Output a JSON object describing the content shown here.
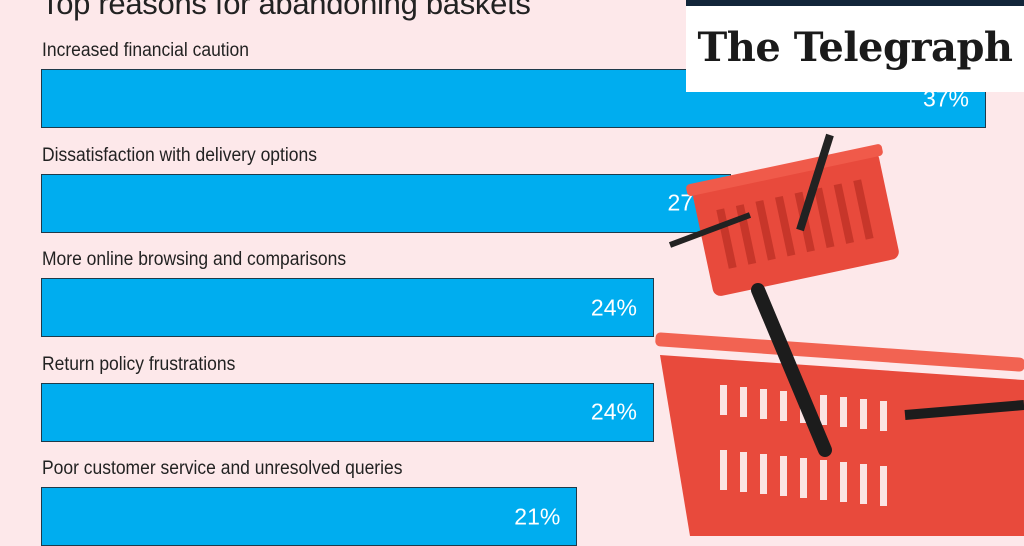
{
  "chart_data": {
    "type": "bar",
    "orientation": "horizontal",
    "title": "Top reasons for abandoning baskets",
    "categories": [
      "Increased financial caution",
      "Dissatisfaction with delivery options",
      "More online browsing and comparisons",
      "Return policy frustrations",
      "Poor customer service and unresolved queries"
    ],
    "values": [
      37,
      27,
      24,
      24,
      21
    ],
    "value_labels": [
      "37%",
      "27%",
      "24%",
      "24%",
      "21%"
    ],
    "xlim": [
      0,
      37
    ],
    "grid": false,
    "bar_color": "#00adef",
    "background_color": "#fde8ea"
  },
  "branding": {
    "logo_text": "The Telegraph"
  }
}
